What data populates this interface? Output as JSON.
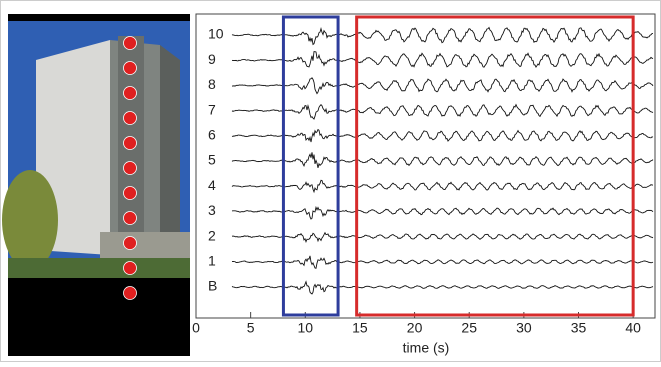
{
  "chart_data": {
    "type": "seismogram",
    "xlabel": "time (s)",
    "traces": [
      "10",
      "9",
      "8",
      "7",
      "6",
      "5",
      "4",
      "3",
      "2",
      "1",
      "B"
    ],
    "xlim": [
      0,
      42
    ],
    "xticks": [
      0,
      5,
      10,
      15,
      20,
      25,
      30,
      35,
      40
    ],
    "highlights": [
      {
        "color": "#2e3d9c",
        "xlim": [
          8,
          13
        ]
      },
      {
        "color": "#d62b2b",
        "xlim": [
          14.7,
          40
        ]
      }
    ],
    "trace_color": "#111111"
  }
}
